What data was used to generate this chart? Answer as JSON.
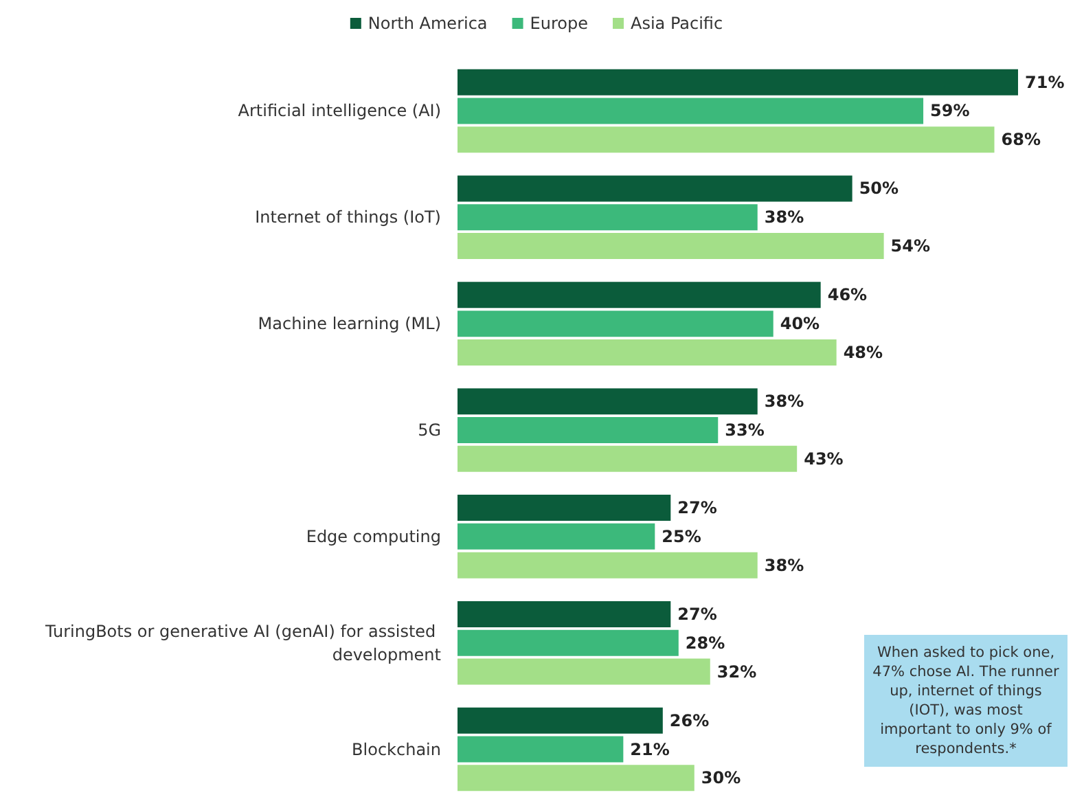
{
  "chart_data": {
    "type": "bar",
    "orientation": "horizontal",
    "legend": "top",
    "categories": [
      "Artificial intelligence (AI)",
      "Internet of things (IoT)",
      "Machine learning (ML)",
      "5G",
      "Edge computing",
      "TuringBots or generative AI (genAI) for assisted development",
      "Blockchain"
    ],
    "series": [
      {
        "name": "North America",
        "color": "#0b5c3b",
        "values": [
          71,
          50,
          46,
          38,
          27,
          27,
          26
        ],
        "value_labels": [
          "71%",
          "50%",
          "46%",
          "38%",
          "27%",
          "27%",
          "26%"
        ]
      },
      {
        "name": "Europe",
        "color": "#3cb97b",
        "values": [
          59,
          38,
          40,
          33,
          25,
          28,
          21
        ],
        "value_labels": [
          "59%",
          "38%",
          "40%",
          "33%",
          "25%",
          "28%",
          "21%"
        ]
      },
      {
        "name": "Asia Pacific",
        "color": "#a3df88",
        "values": [
          68,
          54,
          48,
          43,
          38,
          32,
          30
        ],
        "value_labels": [
          "68%",
          "54%",
          "48%",
          "43%",
          "38%",
          "32%",
          "30%"
        ]
      }
    ],
    "tick_labels": "y",
    "annotations": [
      "When asked to pick one, 47% chose AI. The runner up, internet of things (IOT), was most important to only 9% of respondents.*"
    ]
  }
}
